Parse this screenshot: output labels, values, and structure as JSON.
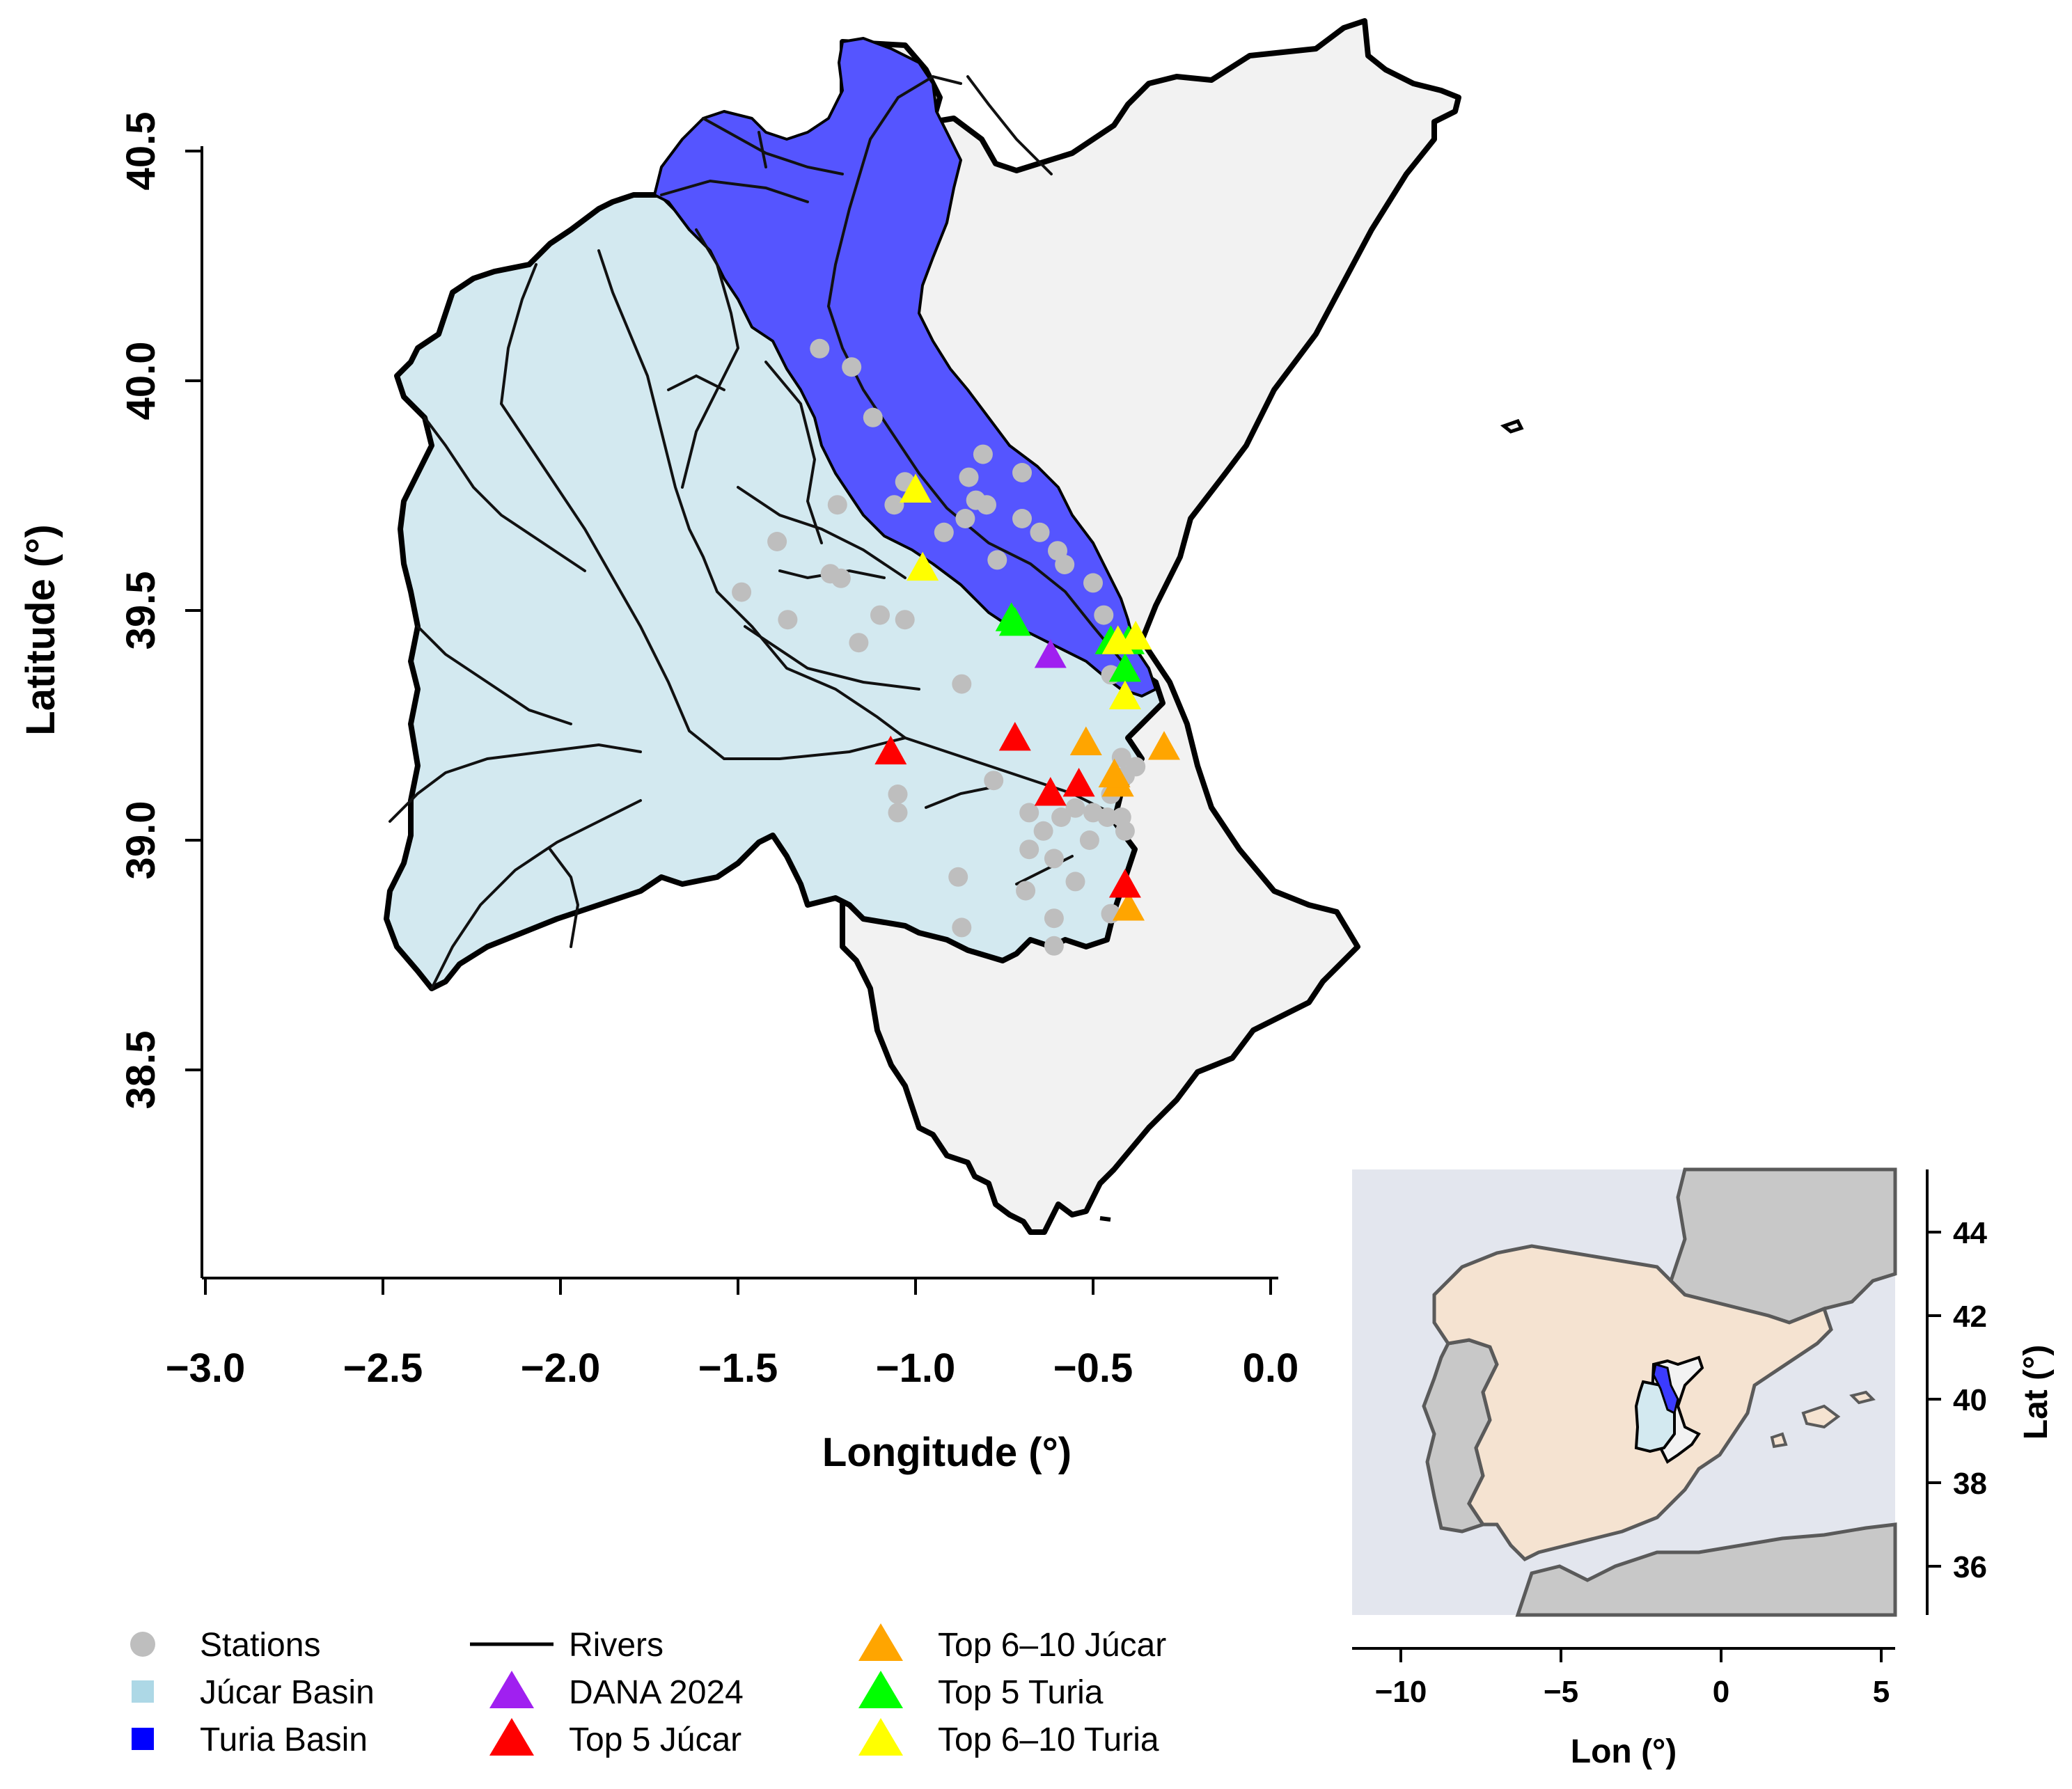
{
  "main_map": {
    "x_label": "Longitude (°)",
    "y_label": "Latitude (°)",
    "x_ticks": [
      {
        "value": -3.0,
        "label": "−3.0"
      },
      {
        "value": -2.5,
        "label": "−2.5"
      },
      {
        "value": -2.0,
        "label": "−2.0"
      },
      {
        "value": -1.5,
        "label": "−1.5"
      },
      {
        "value": -1.0,
        "label": "−1.0"
      },
      {
        "value": -0.5,
        "label": "−0.5"
      },
      {
        "value": 0.0,
        "label": "0.0"
      }
    ],
    "y_ticks": [
      {
        "value": 38.5,
        "label": "38.5"
      },
      {
        "value": 39.0,
        "label": "39.0"
      },
      {
        "value": 39.5,
        "label": "39.5"
      },
      {
        "value": 40.0,
        "label": "40.0"
      },
      {
        "value": 40.5,
        "label": "40.5"
      }
    ],
    "colors": {
      "region": "#f2f2f2",
      "jucar_basin": "#d3e9f0",
      "turia_basin": "#5555ff",
      "station": "#bebebe",
      "river": "#111111"
    }
  },
  "inset_map": {
    "x_label": "Lon (°)",
    "y_label": "Lat (°)",
    "x_ticks": [
      {
        "value": -10,
        "label": "−10"
      },
      {
        "value": -5,
        "label": "−5"
      },
      {
        "value": 0,
        "label": "0"
      },
      {
        "value": 5,
        "label": "5"
      }
    ],
    "y_ticks": [
      {
        "value": 36,
        "label": "36"
      },
      {
        "value": 38,
        "label": "38"
      },
      {
        "value": 40,
        "label": "40"
      },
      {
        "value": 42,
        "label": "42"
      },
      {
        "value": 44,
        "label": "44"
      }
    ],
    "colors": {
      "sea": "#e3e6ee",
      "spain": "#f5e3d1",
      "neighbors": "#c8c8c8",
      "border": "#5a5a5a"
    }
  },
  "legend": {
    "items": [
      {
        "label": "Stations",
        "symbol": "circle",
        "color": "#bebebe"
      },
      {
        "label": "Júcar Basin",
        "symbol": "square",
        "color": "#add8e6"
      },
      {
        "label": "Turia Basin",
        "symbol": "square",
        "color": "#0000ff"
      },
      {
        "label": "Rivers",
        "symbol": "line",
        "color": "#000000"
      },
      {
        "label": "DANA 2024",
        "symbol": "triangle",
        "color": "#a020f0"
      },
      {
        "label": "Top 5 Júcar",
        "symbol": "triangle",
        "color": "#ff0000"
      },
      {
        "label": "Top 6–10 Júcar",
        "symbol": "triangle",
        "color": "#ffa500"
      },
      {
        "label": "Top 5 Turia",
        "symbol": "triangle",
        "color": "#00ff00"
      },
      {
        "label": "Top 6–10 Turia",
        "symbol": "triangle",
        "color": "#ffff00"
      }
    ]
  },
  "stations": [
    [
      -1.27,
      40.07
    ],
    [
      -1.18,
      40.03
    ],
    [
      -1.12,
      39.92
    ],
    [
      -1.03,
      39.78
    ],
    [
      -1.06,
      39.73
    ],
    [
      -0.85,
      39.79
    ],
    [
      -0.81,
      39.84
    ],
    [
      -0.7,
      39.8
    ],
    [
      -0.83,
      39.74
    ],
    [
      -0.8,
      39.73
    ],
    [
      -0.86,
      39.7
    ],
    [
      -0.7,
      39.7
    ],
    [
      -0.65,
      39.67
    ],
    [
      -0.92,
      39.67
    ],
    [
      -0.77,
      39.61
    ],
    [
      -0.6,
      39.63
    ],
    [
      -0.58,
      39.6
    ],
    [
      -0.5,
      39.56
    ],
    [
      -0.47,
      39.49
    ],
    [
      -1.22,
      39.73
    ],
    [
      -1.39,
      39.65
    ],
    [
      -1.24,
      39.58
    ],
    [
      -1.21,
      39.57
    ],
    [
      -1.49,
      39.54
    ],
    [
      -1.36,
      39.48
    ],
    [
      -1.1,
      39.49
    ],
    [
      -1.03,
      39.48
    ],
    [
      -1.16,
      39.43
    ],
    [
      -0.87,
      39.34
    ],
    [
      -0.45,
      39.36
    ],
    [
      -0.78,
      39.13
    ],
    [
      -1.05,
      39.1
    ],
    [
      -1.05,
      39.06
    ],
    [
      -0.68,
      39.06
    ],
    [
      -0.64,
      39.02
    ],
    [
      -0.59,
      39.05
    ],
    [
      -0.55,
      39.07
    ],
    [
      -0.5,
      39.06
    ],
    [
      -0.46,
      39.05
    ],
    [
      -0.42,
      39.05
    ],
    [
      -0.41,
      39.02
    ],
    [
      -0.51,
      39.0
    ],
    [
      -0.68,
      38.98
    ],
    [
      -0.61,
      38.96
    ],
    [
      -0.55,
      38.91
    ],
    [
      -0.88,
      38.92
    ],
    [
      -0.69,
      38.89
    ],
    [
      -0.61,
      38.83
    ],
    [
      -0.87,
      38.81
    ],
    [
      -0.61,
      38.77
    ],
    [
      -0.45,
      38.84
    ],
    [
      -0.42,
      39.18
    ],
    [
      -0.38,
      39.16
    ],
    [
      -0.41,
      39.14
    ],
    [
      -0.45,
      39.1
    ]
  ],
  "markers": {
    "dana_2024": [
      [
        -0.62,
        39.4
      ]
    ],
    "top5_jucar": [
      [
        -1.07,
        39.19
      ],
      [
        -0.72,
        39.22
      ],
      [
        -0.54,
        39.12
      ],
      [
        -0.62,
        39.1
      ],
      [
        -0.41,
        38.9
      ]
    ],
    "top6_10_jucar": [
      [
        -0.52,
        39.21
      ],
      [
        -0.3,
        39.2
      ],
      [
        -0.43,
        39.12
      ],
      [
        -0.44,
        39.14
      ],
      [
        -0.4,
        38.85
      ]
    ],
    "top5_turia": [
      [
        -0.72,
        39.47
      ],
      [
        -0.73,
        39.48
      ],
      [
        -0.45,
        39.43
      ],
      [
        -0.4,
        39.43
      ],
      [
        -0.41,
        39.37
      ]
    ],
    "top6_10_turia": [
      [
        -1.0,
        39.76
      ],
      [
        -0.98,
        39.59
      ],
      [
        -0.43,
        39.43
      ],
      [
        -0.38,
        39.44
      ],
      [
        -0.41,
        39.31
      ]
    ]
  }
}
